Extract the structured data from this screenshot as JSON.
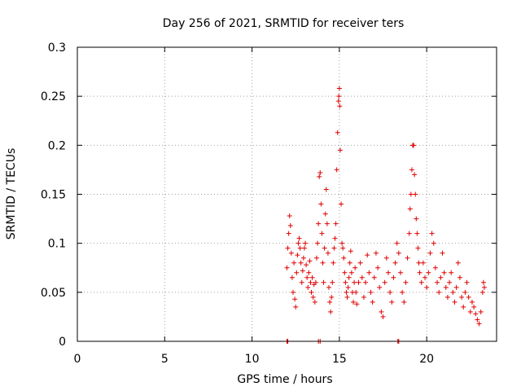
{
  "chart_data": {
    "type": "scatter",
    "title": "Day 256 of 2021, SRMTID for receiver ters",
    "xlabel": "GPS time / hours",
    "ylabel": "SRMTID / TECUs",
    "xlim": [
      0,
      24
    ],
    "ylim": [
      0,
      0.3
    ],
    "xticks": [
      "0",
      "5",
      "10",
      "15",
      "20"
    ],
    "xtick_values": [
      0,
      5,
      10,
      15,
      20
    ],
    "yticks": [
      "0",
      "0.05",
      "0.1",
      "0.15",
      "0.2",
      "0.25",
      "0.3"
    ],
    "ytick_values": [
      0,
      0.05,
      0.1,
      0.15,
      0.2,
      0.25,
      0.3
    ],
    "grid": true,
    "marker": "plus",
    "series_color": "#e00000",
    "points": [
      [
        12.0,
        0.0
      ],
      [
        12.05,
        0.0
      ],
      [
        13.8,
        0.0
      ],
      [
        13.9,
        0.0
      ],
      [
        18.35,
        0.0
      ],
      [
        18.4,
        0.0
      ],
      [
        12.0,
        0.075
      ],
      [
        12.05,
        0.095
      ],
      [
        12.1,
        0.11
      ],
      [
        12.15,
        0.128
      ],
      [
        12.2,
        0.118
      ],
      [
        12.25,
        0.09
      ],
      [
        12.3,
        0.065
      ],
      [
        12.35,
        0.05
      ],
      [
        12.4,
        0.08
      ],
      [
        12.45,
        0.043
      ],
      [
        12.5,
        0.035
      ],
      [
        12.55,
        0.07
      ],
      [
        12.6,
        0.088
      ],
      [
        12.65,
        0.1
      ],
      [
        12.7,
        0.105
      ],
      [
        12.75,
        0.095
      ],
      [
        12.8,
        0.08
      ],
      [
        12.85,
        0.06
      ],
      [
        12.9,
        0.072
      ],
      [
        12.95,
        0.085
      ],
      [
        13.0,
        0.095
      ],
      [
        13.05,
        0.1
      ],
      [
        13.1,
        0.078
      ],
      [
        13.15,
        0.065
      ],
      [
        13.2,
        0.055
      ],
      [
        13.25,
        0.07
      ],
      [
        13.3,
        0.082
      ],
      [
        13.35,
        0.06
      ],
      [
        13.4,
        0.05
      ],
      [
        13.45,
        0.065
      ],
      [
        13.5,
        0.045
      ],
      [
        13.55,
        0.058
      ],
      [
        13.6,
        0.04
      ],
      [
        13.65,
        0.06
      ],
      [
        13.7,
        0.085
      ],
      [
        13.75,
        0.1
      ],
      [
        13.8,
        0.12
      ],
      [
        13.85,
        0.168
      ],
      [
        13.9,
        0.172
      ],
      [
        13.95,
        0.14
      ],
      [
        14.0,
        0.11
      ],
      [
        14.05,
        0.08
      ],
      [
        14.1,
        0.06
      ],
      [
        14.15,
        0.095
      ],
      [
        14.2,
        0.13
      ],
      [
        14.25,
        0.155
      ],
      [
        14.3,
        0.12
      ],
      [
        14.35,
        0.09
      ],
      [
        14.4,
        0.055
      ],
      [
        14.45,
        0.04
      ],
      [
        14.5,
        0.03
      ],
      [
        14.55,
        0.045
      ],
      [
        14.6,
        0.06
      ],
      [
        14.65,
        0.08
      ],
      [
        14.7,
        0.095
      ],
      [
        14.75,
        0.105
      ],
      [
        14.8,
        0.12
      ],
      [
        14.85,
        0.175
      ],
      [
        14.9,
        0.213
      ],
      [
        14.95,
        0.245
      ],
      [
        14.97,
        0.25
      ],
      [
        15.0,
        0.258
      ],
      [
        15.02,
        0.24
      ],
      [
        15.05,
        0.195
      ],
      [
        15.1,
        0.14
      ],
      [
        15.15,
        0.1
      ],
      [
        15.2,
        0.095
      ],
      [
        15.25,
        0.085
      ],
      [
        15.3,
        0.07
      ],
      [
        15.35,
        0.06
      ],
      [
        15.4,
        0.05
      ],
      [
        15.45,
        0.045
      ],
      [
        15.5,
        0.055
      ],
      [
        15.55,
        0.065
      ],
      [
        15.6,
        0.08
      ],
      [
        15.65,
        0.092
      ],
      [
        15.7,
        0.07
      ],
      [
        15.75,
        0.05
      ],
      [
        15.8,
        0.04
      ],
      [
        15.85,
        0.06
      ],
      [
        15.9,
        0.075
      ],
      [
        15.95,
        0.05
      ],
      [
        16.0,
        0.038
      ],
      [
        16.1,
        0.06
      ],
      [
        16.2,
        0.08
      ],
      [
        16.3,
        0.065
      ],
      [
        16.4,
        0.045
      ],
      [
        16.5,
        0.06
      ],
      [
        16.6,
        0.088
      ],
      [
        16.7,
        0.07
      ],
      [
        16.8,
        0.05
      ],
      [
        16.9,
        0.04
      ],
      [
        17.0,
        0.065
      ],
      [
        17.1,
        0.09
      ],
      [
        17.2,
        0.075
      ],
      [
        17.3,
        0.055
      ],
      [
        17.4,
        0.03
      ],
      [
        17.5,
        0.025
      ],
      [
        17.6,
        0.06
      ],
      [
        17.7,
        0.085
      ],
      [
        17.8,
        0.07
      ],
      [
        17.9,
        0.05
      ],
      [
        18.0,
        0.04
      ],
      [
        18.1,
        0.065
      ],
      [
        18.2,
        0.08
      ],
      [
        18.3,
        0.1
      ],
      [
        18.4,
        0.09
      ],
      [
        18.5,
        0.07
      ],
      [
        18.6,
        0.05
      ],
      [
        18.7,
        0.04
      ],
      [
        18.8,
        0.06
      ],
      [
        18.9,
        0.085
      ],
      [
        19.0,
        0.11
      ],
      [
        19.05,
        0.135
      ],
      [
        19.1,
        0.15
      ],
      [
        19.15,
        0.175
      ],
      [
        19.2,
        0.2
      ],
      [
        19.25,
        0.2
      ],
      [
        19.3,
        0.17
      ],
      [
        19.35,
        0.15
      ],
      [
        19.4,
        0.125
      ],
      [
        19.45,
        0.11
      ],
      [
        19.5,
        0.095
      ],
      [
        19.55,
        0.08
      ],
      [
        19.6,
        0.07
      ],
      [
        19.7,
        0.06
      ],
      [
        19.8,
        0.08
      ],
      [
        19.9,
        0.065
      ],
      [
        20.0,
        0.055
      ],
      [
        20.1,
        0.07
      ],
      [
        20.2,
        0.09
      ],
      [
        20.3,
        0.11
      ],
      [
        20.4,
        0.1
      ],
      [
        20.5,
        0.075
      ],
      [
        20.6,
        0.06
      ],
      [
        20.7,
        0.05
      ],
      [
        20.8,
        0.065
      ],
      [
        20.9,
        0.09
      ],
      [
        21.0,
        0.07
      ],
      [
        21.1,
        0.055
      ],
      [
        21.2,
        0.045
      ],
      [
        21.3,
        0.06
      ],
      [
        21.4,
        0.07
      ],
      [
        21.5,
        0.05
      ],
      [
        21.6,
        0.04
      ],
      [
        21.7,
        0.055
      ],
      [
        21.8,
        0.08
      ],
      [
        21.9,
        0.065
      ],
      [
        22.0,
        0.045
      ],
      [
        22.1,
        0.035
      ],
      [
        22.2,
        0.05
      ],
      [
        22.3,
        0.06
      ],
      [
        22.4,
        0.045
      ],
      [
        22.5,
        0.03
      ],
      [
        22.6,
        0.04
      ],
      [
        22.7,
        0.035
      ],
      [
        22.8,
        0.028
      ],
      [
        22.9,
        0.022
      ],
      [
        23.0,
        0.018
      ],
      [
        23.1,
        0.03
      ],
      [
        23.2,
        0.05
      ],
      [
        23.25,
        0.06
      ],
      [
        23.3,
        0.055
      ]
    ]
  }
}
